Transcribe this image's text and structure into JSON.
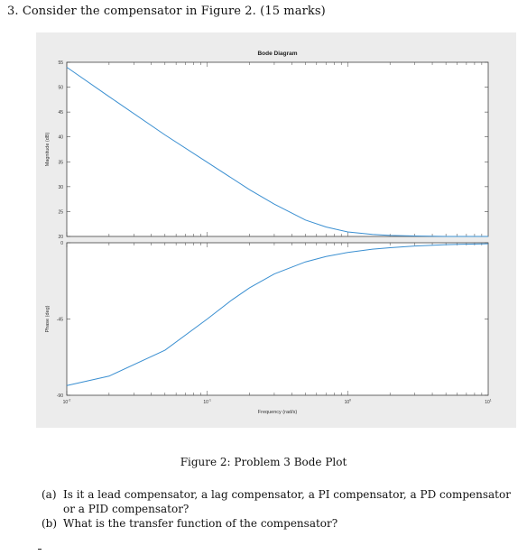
{
  "question": {
    "heading": "3. Consider the compensator in Figure 2. (15 marks)"
  },
  "figure": {
    "caption": "Figure 2: Problem 3 Bode Plot"
  },
  "chart_data": {
    "type": "line",
    "title": "Bode Diagram",
    "xlabel": "Frequency (rad/s)",
    "x_scale": "log",
    "xlim": [
      0.01,
      10
    ],
    "x_ticks": [
      {
        "value": 0.01,
        "base": "10",
        "exp": "-2"
      },
      {
        "value": 0.1,
        "base": "10",
        "exp": "-1"
      },
      {
        "value": 1,
        "base": "10",
        "exp": "0"
      },
      {
        "value": 10,
        "base": "10",
        "exp": "1"
      }
    ],
    "grid": false,
    "line_color": "#3a8fd1",
    "magnitude": {
      "ylabel": "Magnitude (dB)",
      "ylim": [
        20,
        55
      ],
      "yticks": [
        20,
        25,
        30,
        35,
        40,
        45,
        50,
        55
      ],
      "x": [
        0.01,
        0.02,
        0.05,
        0.1,
        0.2,
        0.3,
        0.5,
        0.7,
        1,
        1.5,
        2,
        3,
        5,
        10
      ],
      "y": [
        54,
        48.1,
        40.4,
        34.9,
        29.4,
        26.5,
        23.3,
        21.9,
        20.9,
        20.4,
        20.2,
        20.1,
        20.0,
        20.0
      ]
    },
    "phase": {
      "ylabel": "Phase (deg)",
      "ylim": [
        -90,
        0
      ],
      "yticks": [
        -90,
        -45,
        0
      ],
      "x": [
        0.01,
        0.02,
        0.05,
        0.1,
        0.15,
        0.2,
        0.3,
        0.5,
        0.7,
        1,
        1.5,
        2,
        3,
        5,
        10
      ],
      "y": [
        -84.3,
        -78.7,
        -63.4,
        -45,
        -33.7,
        -26.6,
        -18.4,
        -11.3,
        -8.1,
        -5.7,
        -3.8,
        -2.9,
        -1.9,
        -1.1,
        -0.6
      ]
    }
  },
  "subquestions": [
    {
      "label": "(a)",
      "text": "Is it a lead compensator, a lag compensator, a PI compensator, a PD compensator or a PID compensator?"
    },
    {
      "label": "(b)",
      "text": "What is the transfer function of the compensator?"
    }
  ]
}
